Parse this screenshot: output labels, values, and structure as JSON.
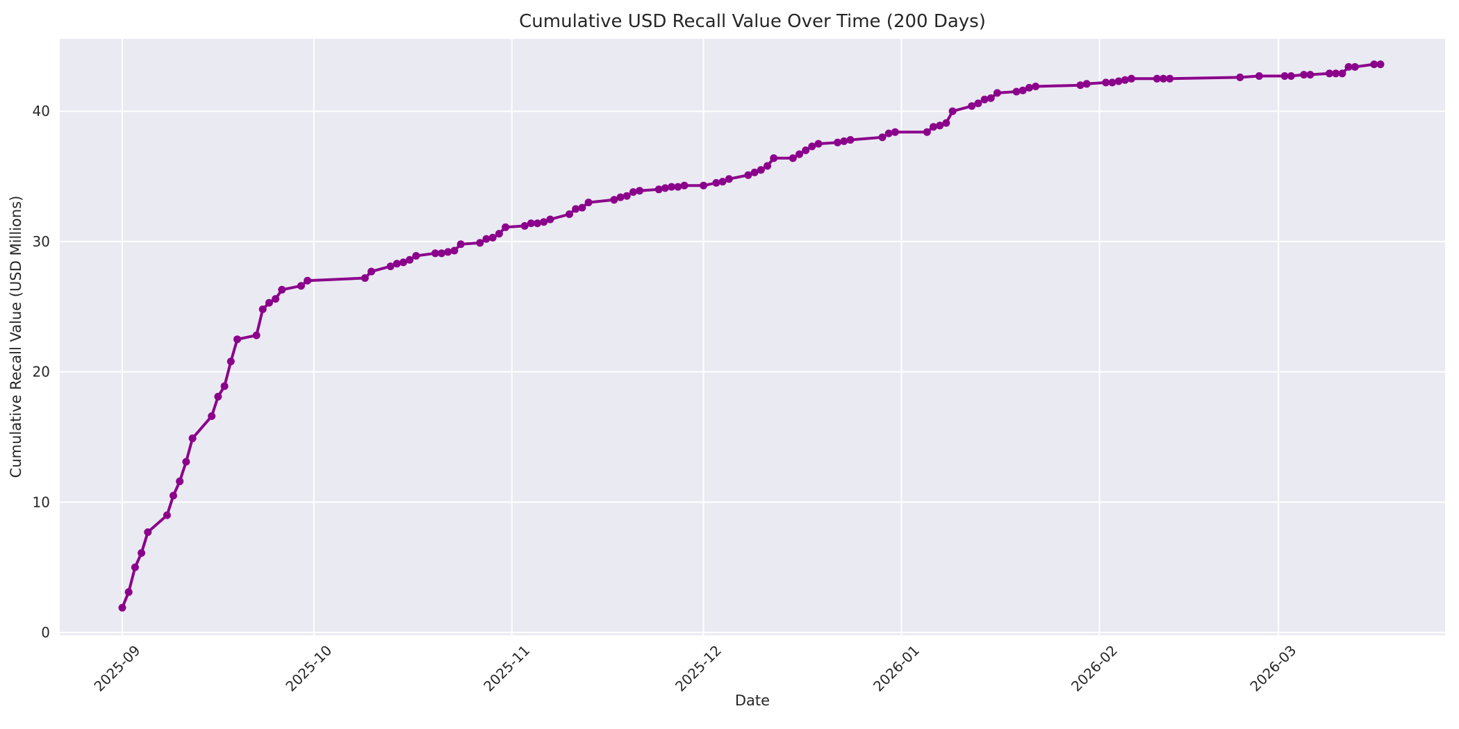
{
  "chart": {
    "title": "Cumulative USD Recall Value Over Time (200 Days)",
    "xlabel": "Date",
    "ylabel": "Cumulative Recall Value (USD Millions)"
  },
  "colors": {
    "line": "#8B008B",
    "marker": "#8B008B",
    "plot_background": "#EAEAF2",
    "figure_background": "#FFFFFF",
    "grid": "#FFFFFF",
    "text": "#262626"
  },
  "chart_data": {
    "type": "line",
    "title": "Cumulative USD Recall Value Over Time (200 Days)",
    "xlabel": "Date",
    "ylabel": "Cumulative Recall Value (USD Millions)",
    "legend": null,
    "grid": true,
    "marker": "circle",
    "x_ticks": [
      {
        "label": "2025-09",
        "date": "2025-09-01"
      },
      {
        "label": "2025-10",
        "date": "2025-10-01"
      },
      {
        "label": "2025-11",
        "date": "2025-11-01"
      },
      {
        "label": "2025-12",
        "date": "2025-12-01"
      },
      {
        "label": "2026-01",
        "date": "2026-01-01"
      },
      {
        "label": "2026-02",
        "date": "2026-02-01"
      },
      {
        "label": "2026-03",
        "date": "2026-03-01"
      }
    ],
    "y_ticks": [
      0,
      10,
      20,
      30,
      40
    ],
    "ylim": [
      -0.2,
      45.5
    ],
    "x_range": [
      "2025-09-01",
      "2026-03-17"
    ],
    "series": [
      {
        "name": "cumulative_recall_value_usd_millions",
        "dates": [
          "2025-09-01",
          "2025-09-02",
          "2025-09-03",
          "2025-09-04",
          "2025-09-05",
          "2025-09-08",
          "2025-09-09",
          "2025-09-10",
          "2025-09-11",
          "2025-09-12",
          "2025-09-15",
          "2025-09-16",
          "2025-09-17",
          "2025-09-18",
          "2025-09-19",
          "2025-09-22",
          "2025-09-23",
          "2025-09-24",
          "2025-09-25",
          "2025-09-26",
          "2025-09-29",
          "2025-09-30",
          "2025-10-09",
          "2025-10-10",
          "2025-10-13",
          "2025-10-14",
          "2025-10-15",
          "2025-10-16",
          "2025-10-17",
          "2025-10-20",
          "2025-10-21",
          "2025-10-22",
          "2025-10-23",
          "2025-10-24",
          "2025-10-27",
          "2025-10-28",
          "2025-10-29",
          "2025-10-30",
          "2025-10-31",
          "2025-11-03",
          "2025-11-04",
          "2025-11-05",
          "2025-11-06",
          "2025-11-07",
          "2025-11-10",
          "2025-11-11",
          "2025-11-12",
          "2025-11-13",
          "2025-11-17",
          "2025-11-18",
          "2025-11-19",
          "2025-11-20",
          "2025-11-21",
          "2025-11-24",
          "2025-11-25",
          "2025-11-26",
          "2025-11-27",
          "2025-11-28",
          "2025-12-01",
          "2025-12-03",
          "2025-12-04",
          "2025-12-05",
          "2025-12-08",
          "2025-12-09",
          "2025-12-10",
          "2025-12-11",
          "2025-12-12",
          "2025-12-15",
          "2025-12-16",
          "2025-12-17",
          "2025-12-18",
          "2025-12-19",
          "2025-12-22",
          "2025-12-23",
          "2025-12-24",
          "2025-12-29",
          "2025-12-30",
          "2025-12-31",
          "2026-01-05",
          "2026-01-06",
          "2026-01-07",
          "2026-01-08",
          "2026-01-09",
          "2026-01-12",
          "2026-01-13",
          "2026-01-14",
          "2026-01-15",
          "2026-01-16",
          "2026-01-19",
          "2026-01-20",
          "2026-01-21",
          "2026-01-22",
          "2026-01-29",
          "2026-01-30",
          "2026-02-02",
          "2026-02-03",
          "2026-02-04",
          "2026-02-05",
          "2026-02-06",
          "2026-02-10",
          "2026-02-11",
          "2026-02-12",
          "2026-02-23",
          "2026-02-26",
          "2026-03-02",
          "2026-03-03",
          "2026-03-05",
          "2026-03-06",
          "2026-03-09",
          "2026-03-10",
          "2026-03-11",
          "2026-03-12",
          "2026-03-13",
          "2026-03-16",
          "2026-03-17"
        ],
        "values": [
          1.9,
          3.1,
          5.0,
          6.1,
          7.7,
          9.0,
          10.5,
          11.6,
          13.1,
          14.9,
          16.6,
          18.1,
          18.9,
          20.8,
          22.5,
          22.8,
          24.8,
          25.3,
          25.6,
          26.3,
          26.6,
          27.0,
          27.2,
          27.7,
          28.1,
          28.3,
          28.4,
          28.6,
          28.9,
          29.1,
          29.1,
          29.2,
          29.3,
          29.8,
          29.9,
          30.2,
          30.3,
          30.6,
          31.1,
          31.2,
          31.4,
          31.4,
          31.5,
          31.7,
          32.1,
          32.5,
          32.6,
          33.0,
          33.2,
          33.4,
          33.5,
          33.8,
          33.9,
          34.0,
          34.1,
          34.2,
          34.2,
          34.3,
          34.3,
          34.5,
          34.6,
          34.8,
          35.1,
          35.3,
          35.5,
          35.8,
          36.4,
          36.4,
          36.7,
          37.0,
          37.3,
          37.5,
          37.6,
          37.7,
          37.8,
          38.0,
          38.3,
          38.4,
          38.4,
          38.8,
          38.9,
          39.1,
          40.0,
          40.4,
          40.6,
          40.9,
          41.0,
          41.4,
          41.5,
          41.6,
          41.8,
          41.9,
          42.0,
          42.1,
          42.2,
          42.2,
          42.3,
          42.4,
          42.5,
          42.5,
          42.5,
          42.5,
          42.6,
          42.7,
          42.7,
          42.7,
          42.8,
          42.8,
          42.9,
          42.9,
          42.9,
          43.4,
          43.4,
          43.6,
          43.6
        ]
      }
    ]
  }
}
